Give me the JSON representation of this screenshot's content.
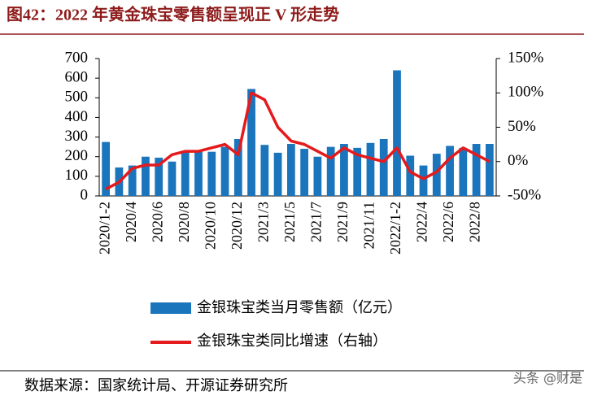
{
  "title": "图42：2022 年黄金珠宝零售额呈现正 V 形走势",
  "source": "数据来源：国家统计局、开源证券研究所",
  "watermark": "头条 @财是",
  "chart_data": {
    "type": "bar-line",
    "categories": [
      "2020/1-2",
      null,
      "2020/4",
      null,
      "2020/6",
      null,
      "2020/8",
      null,
      "2020/10",
      null,
      "2020/12",
      null,
      "2021/3",
      null,
      "2021/5",
      null,
      "2021/7",
      null,
      "2021/9",
      null,
      "2021/11",
      null,
      "2022/1-2",
      null,
      "2022/4",
      null,
      "2022/6",
      null,
      "2022/8",
      null
    ],
    "series": [
      {
        "name": "金银珠宝类当月零售额（亿元）",
        "type": "bar",
        "color": "#1b75bc",
        "values": [
          275,
          145,
          155,
          200,
          195,
          175,
          225,
          225,
          225,
          250,
          290,
          545,
          260,
          220,
          265,
          240,
          200,
          250,
          265,
          245,
          270,
          290,
          640,
          205,
          155,
          215,
          255,
          245,
          265,
          265
        ]
      },
      {
        "name": "金银珠宝类同比增速（右轴）",
        "type": "line",
        "axis": "y2",
        "color": "#e41a1c",
        "values": [
          -40,
          -30,
          -10,
          -5,
          -5,
          10,
          15,
          15,
          20,
          25,
          10,
          100,
          90,
          50,
          30,
          25,
          15,
          5,
          20,
          10,
          5,
          0,
          20,
          -15,
          -25,
          -15,
          5,
          20,
          10,
          0
        ]
      }
    ],
    "ylim": [
      0,
      700
    ],
    "yticks": [
      0,
      100,
      200,
      300,
      400,
      500,
      600,
      700
    ],
    "y2lim": [
      -50,
      150
    ],
    "y2ticks": [
      {
        "value": -50,
        "label": "-50%"
      },
      {
        "value": 0,
        "label": "0%"
      },
      {
        "value": 50,
        "label": "50%"
      },
      {
        "value": 100,
        "label": "100%"
      },
      {
        "value": 150,
        "label": "150%"
      }
    ]
  }
}
